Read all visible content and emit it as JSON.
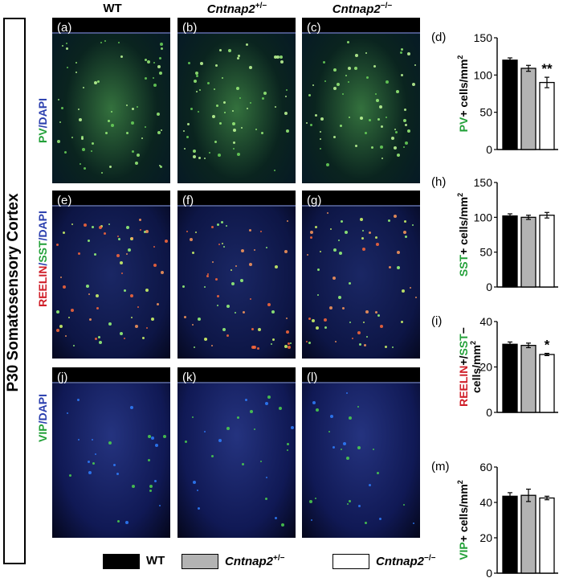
{
  "side_title": "P30 Somatosensory Cortex",
  "columns": [
    {
      "name": "WT",
      "italic": "",
      "sup": ""
    },
    {
      "name": "",
      "italic": "Cntnap2",
      "sup": "+/−"
    },
    {
      "name": "",
      "italic": "Cntnap2",
      "sup": "−/−"
    }
  ],
  "rows": [
    {
      "label_parts": [
        {
          "text": "PV",
          "color": "#22a038"
        },
        {
          "text": "/DAPI",
          "color": "#2b3fae"
        }
      ],
      "panels": [
        "(a)",
        "(b)",
        "(c)"
      ]
    },
    {
      "label_parts": [
        {
          "text": "REELIN",
          "color": "#d0202a"
        },
        {
          "text": "/",
          "color": "#2b3fae"
        },
        {
          "text": "SST",
          "color": "#22a038"
        },
        {
          "text": "/DAPI",
          "color": "#2b3fae"
        }
      ],
      "panels": [
        "(e)",
        "(f)",
        "(g)"
      ]
    },
    {
      "label_parts": [
        {
          "text": "VIP",
          "color": "#22a038"
        },
        {
          "text": "/DAPI",
          "color": "#2b3fae"
        }
      ],
      "panels": [
        "(j)",
        "(k)",
        "(l)"
      ]
    }
  ],
  "legend": [
    {
      "label": "WT",
      "italic": "",
      "sup": "",
      "fill": "#000000"
    },
    {
      "label": "",
      "italic": "Cntnap2",
      "sup": "+/−",
      "fill": "#b3b3b3"
    },
    {
      "label": "",
      "italic": "Cntnap2",
      "sup": "−/−",
      "fill": "#ffffff"
    }
  ],
  "chart_data": [
    {
      "type": "bar",
      "panel_label": "(d)",
      "ylabel_parts": [
        {
          "text": "PV",
          "color": "#22a038"
        },
        {
          "text": "+ cells/mm",
          "color": "#000000"
        }
      ],
      "ylabel_sup": "2",
      "ylim": [
        0,
        150
      ],
      "yticks": [
        0,
        50,
        100,
        150
      ],
      "categories": [
        "WT",
        "Cntnap2+/−",
        "Cntnap2−/−"
      ],
      "values": [
        120,
        109,
        90
      ],
      "errors": [
        3,
        4,
        7
      ],
      "significance": [
        "",
        "",
        "**"
      ]
    },
    {
      "type": "bar",
      "panel_label": "(h)",
      "ylabel_parts": [
        {
          "text": "SST",
          "color": "#22a038"
        },
        {
          "text": "+ cells/mm",
          "color": "#000000"
        }
      ],
      "ylabel_sup": "2",
      "ylim": [
        0,
        150
      ],
      "yticks": [
        0,
        50,
        100,
        150
      ],
      "categories": [
        "WT",
        "Cntnap2+/−",
        "Cntnap2−/−"
      ],
      "values": [
        102,
        100,
        103
      ],
      "errors": [
        3,
        3,
        4
      ],
      "significance": [
        "",
        "",
        ""
      ]
    },
    {
      "type": "bar",
      "panel_label": "(i)",
      "ylabel_parts": [
        {
          "text": "REELIN",
          "color": "#d0202a"
        },
        {
          "text": "+/",
          "color": "#000000"
        },
        {
          "text": "SST",
          "color": "#22a038"
        },
        {
          "text": "−",
          "color": "#000000"
        }
      ],
      "ylabel_line2": "cells/mm",
      "ylabel_sup": "2",
      "ylim": [
        0,
        40
      ],
      "yticks": [
        0,
        20,
        40
      ],
      "categories": [
        "WT",
        "Cntnap2+/−",
        "Cntnap2−/−"
      ],
      "values": [
        30,
        29.5,
        25.5
      ],
      "errors": [
        1,
        1,
        0.5
      ],
      "significance": [
        "",
        "",
        "*"
      ]
    },
    {
      "type": "bar",
      "panel_label": "(m)",
      "ylabel_parts": [
        {
          "text": "VIP",
          "color": "#22a038"
        },
        {
          "text": "+ cells/mm",
          "color": "#000000"
        }
      ],
      "ylabel_sup": "2",
      "ylim": [
        0,
        60
      ],
      "yticks": [
        0,
        20,
        40,
        60
      ],
      "categories": [
        "WT",
        "Cntnap2+/−",
        "Cntnap2−/−"
      ],
      "values": [
        43.5,
        44,
        42.5
      ],
      "errors": [
        2,
        3.5,
        1
      ],
      "significance": [
        "",
        "",
        ""
      ]
    }
  ],
  "bar_fills": [
    "#000000",
    "#b3b3b3",
    "#ffffff"
  ]
}
